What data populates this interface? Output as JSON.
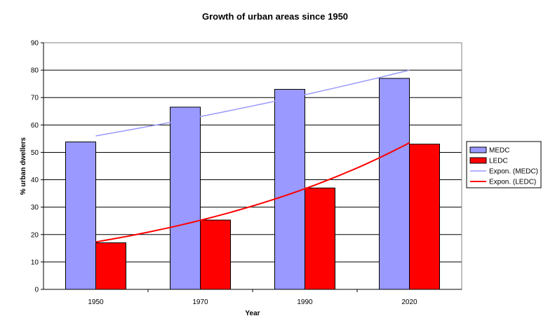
{
  "chart_data": {
    "type": "bar",
    "title": "Growth of urban areas since 1950",
    "xlabel": "Year",
    "ylabel": "% urban dwellers",
    "ylim": [
      0,
      90
    ],
    "yticks": [
      0,
      10,
      20,
      30,
      40,
      50,
      60,
      70,
      80,
      90
    ],
    "categories": [
      "1950",
      "1970",
      "1990",
      "2020"
    ],
    "series": [
      {
        "name": "MEDC",
        "values": [
          53.8,
          66.5,
          73,
          77
        ],
        "color": "#9999ff",
        "stroke": "#000000"
      },
      {
        "name": "LEDC",
        "values": [
          17,
          25.3,
          37,
          53
        ],
        "color": "#ff0000",
        "stroke": "#000000"
      }
    ],
    "trendlines": [
      {
        "name": "Expon. (MEDC)",
        "type": "exponential",
        "start": 56,
        "end": 80,
        "color": "#9999ff"
      },
      {
        "name": "Expon. (LEDC)",
        "type": "exponential",
        "start": 17.3,
        "end": 53.5,
        "color": "#ff0000"
      }
    ],
    "grid": true,
    "legend_position": "right"
  }
}
